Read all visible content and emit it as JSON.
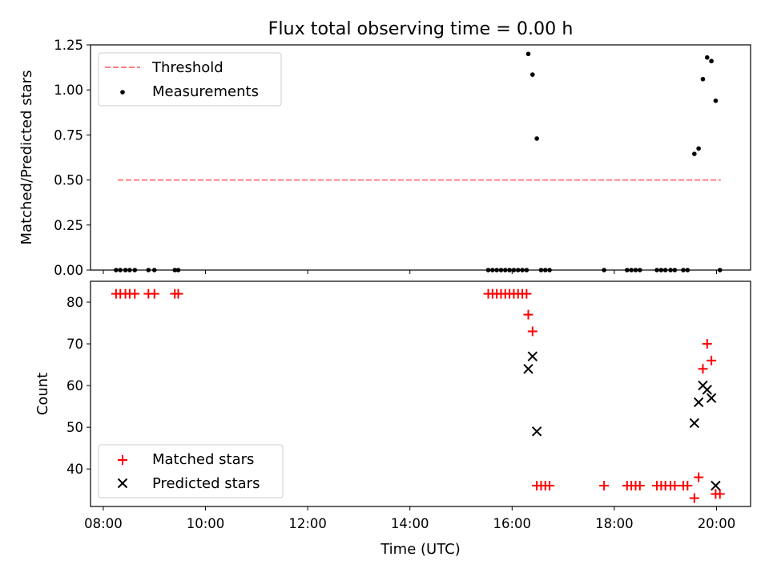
{
  "title": "Flux total observing time = 0.00 h",
  "xlabel": "Time (UTC)",
  "x_ticks": [
    "08:00",
    "10:00",
    "12:00",
    "14:00",
    "16:00",
    "18:00",
    "20:00"
  ],
  "chart_data": [
    {
      "type": "scatter",
      "ylabel": "Matched/Predicted stars",
      "xlim": [
        "07:45",
        "20:40"
      ],
      "ylim": [
        0,
        1.25
      ],
      "y_ticks": [
        "0.00",
        "0.25",
        "0.50",
        "0.75",
        "1.00",
        "1.25"
      ],
      "legend_position": "top-left",
      "series": [
        {
          "name": "Threshold",
          "kind": "line",
          "style": "dashed",
          "color": "#ff7f7f",
          "points": [
            {
              "x": "08:17",
              "y": 0.5
            },
            {
              "x": "20:05",
              "y": 0.5
            }
          ]
        },
        {
          "name": "Measurements",
          "kind": "points",
          "marker": "dot",
          "color": "#000000",
          "points": [
            {
              "x": "08:15",
              "y": 0
            },
            {
              "x": "08:20",
              "y": 0
            },
            {
              "x": "08:26",
              "y": 0
            },
            {
              "x": "08:31",
              "y": 0
            },
            {
              "x": "08:37",
              "y": 0
            },
            {
              "x": "08:53",
              "y": 0
            },
            {
              "x": "09:00",
              "y": 0
            },
            {
              "x": "09:24",
              "y": 0
            },
            {
              "x": "09:28",
              "y": 0
            },
            {
              "x": "15:32",
              "y": 0
            },
            {
              "x": "15:37",
              "y": 0
            },
            {
              "x": "15:42",
              "y": 0
            },
            {
              "x": "15:47",
              "y": 0
            },
            {
              "x": "15:52",
              "y": 0
            },
            {
              "x": "15:57",
              "y": 0
            },
            {
              "x": "16:02",
              "y": 0
            },
            {
              "x": "16:07",
              "y": 0
            },
            {
              "x": "16:12",
              "y": 0
            },
            {
              "x": "16:17",
              "y": 0
            },
            {
              "x": "16:19",
              "y": 1.2
            },
            {
              "x": "16:24",
              "y": 1.085
            },
            {
              "x": "16:29",
              "y": 0.73
            },
            {
              "x": "16:34",
              "y": 0
            },
            {
              "x": "16:39",
              "y": 0
            },
            {
              "x": "16:44",
              "y": 0
            },
            {
              "x": "17:48",
              "y": 0
            },
            {
              "x": "18:15",
              "y": 0
            },
            {
              "x": "18:20",
              "y": 0
            },
            {
              "x": "18:25",
              "y": 0
            },
            {
              "x": "18:30",
              "y": 0
            },
            {
              "x": "18:50",
              "y": 0
            },
            {
              "x": "18:55",
              "y": 0
            },
            {
              "x": "19:00",
              "y": 0
            },
            {
              "x": "19:06",
              "y": 0
            },
            {
              "x": "19:11",
              "y": 0
            },
            {
              "x": "19:21",
              "y": 0
            },
            {
              "x": "19:26",
              "y": 0
            },
            {
              "x": "19:34",
              "y": 0.645
            },
            {
              "x": "19:39",
              "y": 0.675
            },
            {
              "x": "19:44",
              "y": 1.06
            },
            {
              "x": "19:49",
              "y": 1.18
            },
            {
              "x": "19:54",
              "y": 1.16
            },
            {
              "x": "19:59",
              "y": 0.94
            },
            {
              "x": "20:04",
              "y": 0
            }
          ]
        }
      ]
    },
    {
      "type": "scatter",
      "ylabel": "Count",
      "xlim": [
        "07:45",
        "20:40"
      ],
      "ylim": [
        31,
        85
      ],
      "y_ticks": [
        "40",
        "50",
        "60",
        "70",
        "80"
      ],
      "legend_position": "bottom-left",
      "series": [
        {
          "name": "Matched stars",
          "kind": "points",
          "marker": "plus",
          "color": "#ff0000",
          "points": [
            {
              "x": "08:15",
              "y": 82
            },
            {
              "x": "08:20",
              "y": 82
            },
            {
              "x": "08:26",
              "y": 82
            },
            {
              "x": "08:31",
              "y": 82
            },
            {
              "x": "08:37",
              "y": 82
            },
            {
              "x": "08:53",
              "y": 82
            },
            {
              "x": "09:00",
              "y": 82
            },
            {
              "x": "09:24",
              "y": 82
            },
            {
              "x": "09:28",
              "y": 82
            },
            {
              "x": "15:32",
              "y": 82
            },
            {
              "x": "15:37",
              "y": 82
            },
            {
              "x": "15:42",
              "y": 82
            },
            {
              "x": "15:47",
              "y": 82
            },
            {
              "x": "15:52",
              "y": 82
            },
            {
              "x": "15:57",
              "y": 82
            },
            {
              "x": "16:02",
              "y": 82
            },
            {
              "x": "16:07",
              "y": 82
            },
            {
              "x": "16:12",
              "y": 82
            },
            {
              "x": "16:17",
              "y": 82
            },
            {
              "x": "16:19",
              "y": 77
            },
            {
              "x": "16:24",
              "y": 73
            },
            {
              "x": "16:29",
              "y": 36
            },
            {
              "x": "16:34",
              "y": 36
            },
            {
              "x": "16:39",
              "y": 36
            },
            {
              "x": "16:44",
              "y": 36
            },
            {
              "x": "17:48",
              "y": 36
            },
            {
              "x": "18:15",
              "y": 36
            },
            {
              "x": "18:20",
              "y": 36
            },
            {
              "x": "18:25",
              "y": 36
            },
            {
              "x": "18:30",
              "y": 36
            },
            {
              "x": "18:50",
              "y": 36
            },
            {
              "x": "18:55",
              "y": 36
            },
            {
              "x": "19:00",
              "y": 36
            },
            {
              "x": "19:06",
              "y": 36
            },
            {
              "x": "19:11",
              "y": 36
            },
            {
              "x": "19:21",
              "y": 36
            },
            {
              "x": "19:26",
              "y": 36
            },
            {
              "x": "19:34",
              "y": 33
            },
            {
              "x": "19:39",
              "y": 38
            },
            {
              "x": "19:44",
              "y": 64
            },
            {
              "x": "19:49",
              "y": 70
            },
            {
              "x": "19:54",
              "y": 66
            },
            {
              "x": "19:59",
              "y": 34
            },
            {
              "x": "20:04",
              "y": 34
            }
          ]
        },
        {
          "name": "Predicted stars",
          "kind": "points",
          "marker": "cross",
          "color": "#000000",
          "points": [
            {
              "x": "16:19",
              "y": 64
            },
            {
              "x": "16:24",
              "y": 67
            },
            {
              "x": "16:29",
              "y": 49
            },
            {
              "x": "19:34",
              "y": 51
            },
            {
              "x": "19:39",
              "y": 56
            },
            {
              "x": "19:44",
              "y": 60
            },
            {
              "x": "19:49",
              "y": 59
            },
            {
              "x": "19:54",
              "y": 57
            },
            {
              "x": "19:59",
              "y": 36
            }
          ]
        }
      ]
    }
  ]
}
